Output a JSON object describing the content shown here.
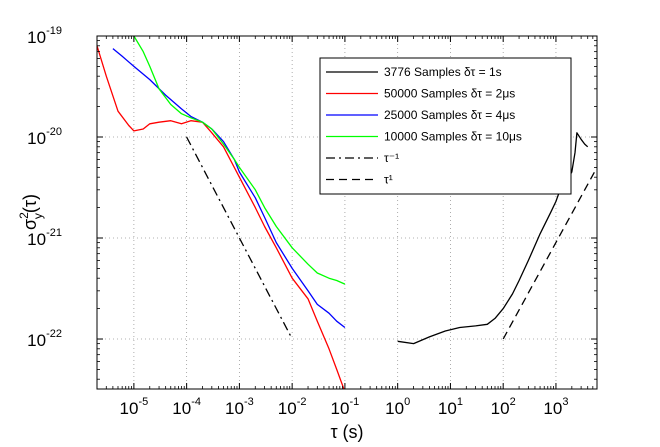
{
  "chart_data": {
    "type": "line",
    "scale": {
      "x": "log",
      "y": "log"
    },
    "xlabel": "τ (s)",
    "ylabel_base": "σ",
    "ylabel_sup": "2",
    "ylabel_sub": "y",
    "ylabel_tail": "(τ)",
    "xlim": [
      2e-06,
      6000
    ],
    "ylim": [
      3.2e-23,
      1e-19
    ],
    "grid": true,
    "x_tick_exponents": [
      -5,
      -4,
      -3,
      -2,
      -1,
      0,
      1,
      2,
      3
    ],
    "y_tick_exponents": [
      -22,
      -21,
      -20,
      -19
    ],
    "tick_base": "10",
    "legend_position": "top-right",
    "series": [
      {
        "name": "3776   Samples δτ = 1s",
        "color": "#000000",
        "dash": "solid",
        "x": [
          1,
          2,
          4,
          8,
          15,
          30,
          50,
          70,
          100,
          150,
          200,
          300,
          500,
          800,
          1000,
          1200,
          1500,
          2000,
          2300,
          2500,
          3000,
          3500,
          4000
        ],
        "y": [
          9.5e-23,
          9e-23,
          1.05e-22,
          1.2e-22,
          1.3e-22,
          1.35e-22,
          1.4e-22,
          1.6e-22,
          2e-22,
          2.8e-22,
          3.8e-22,
          6e-22,
          1.1e-21,
          1.8e-21,
          2.3e-21,
          3e-21,
          3.5e-21,
          4.5e-21,
          7e-21,
          1.1e-20,
          9.5e-21,
          8.5e-21,
          8e-21
        ]
      },
      {
        "name": "50000 Samples δτ = 2μs",
        "color": "#ff0000",
        "dash": "solid",
        "x": [
          2e-06,
          3e-06,
          5e-06,
          8e-06,
          1e-05,
          1.5e-05,
          2e-05,
          3e-05,
          5e-05,
          8e-05,
          0.00012,
          0.0002,
          0.0003,
          0.0005,
          0.0008,
          0.001,
          0.002,
          0.003,
          0.005,
          0.01,
          0.02,
          0.03,
          0.05,
          0.07,
          0.1
        ],
        "y": [
          8e-20,
          4e-20,
          1.8e-20,
          1.3e-20,
          1.15e-20,
          1.2e-20,
          1.35e-20,
          1.4e-20,
          1.45e-20,
          1.35e-20,
          1.45e-20,
          1.4e-20,
          1.1e-20,
          8e-21,
          5e-21,
          4e-21,
          2e-21,
          1.3e-21,
          8e-22,
          4e-22,
          2.5e-22,
          1.5e-22,
          8e-23,
          5e-23,
          3e-23
        ]
      },
      {
        "name": "25000 Samples δτ = 4μs",
        "color": "#0000ff",
        "dash": "solid",
        "x": [
          4e-06,
          6e-06,
          1e-05,
          2e-05,
          4e-05,
          8e-05,
          0.00012,
          0.0002,
          0.0003,
          0.0005,
          0.0008,
          0.001,
          0.002,
          0.003,
          0.005,
          0.01,
          0.02,
          0.03,
          0.05,
          0.07,
          0.1
        ],
        "y": [
          7.5e-20,
          6.3e-20,
          5e-20,
          3.7e-20,
          2.6e-20,
          1.9e-20,
          1.6e-20,
          1.4e-20,
          1.2e-20,
          9e-21,
          6e-21,
          4.5e-21,
          2.5e-21,
          1.6e-21,
          9e-22,
          5e-22,
          3e-22,
          2.2e-22,
          1.8e-22,
          1.5e-22,
          1.3e-22
        ]
      },
      {
        "name": "10000 Samples δτ = 10μs",
        "color": "#00ff00",
        "dash": "solid",
        "x": [
          1e-05,
          1.5e-05,
          2e-05,
          3e-05,
          5e-05,
          8e-05,
          0.00012,
          0.0002,
          0.0003,
          0.0005,
          0.0008,
          0.001,
          0.002,
          0.003,
          0.005,
          0.01,
          0.02,
          0.03,
          0.05,
          0.07,
          0.1
        ],
        "y": [
          1e-19,
          7e-20,
          5e-20,
          3e-20,
          2.1e-20,
          1.7e-20,
          1.55e-20,
          1.4e-20,
          1.2e-20,
          8.5e-21,
          6e-21,
          5e-21,
          3e-21,
          2e-21,
          1.3e-21,
          8e-22,
          5.5e-22,
          4.5e-22,
          4e-22,
          3.8e-22,
          3.5e-22
        ]
      },
      {
        "name": "τ⁻¹",
        "color": "#000000",
        "dash": "dashdot",
        "x": [
          0.0001,
          0.01
        ],
        "y": [
          1e-20,
          1e-22
        ]
      },
      {
        "name": "τ¹",
        "color": "#000000",
        "dash": "dash",
        "x": [
          100,
          6000
        ],
        "y": [
          1e-22,
          5e-21
        ]
      }
    ]
  }
}
